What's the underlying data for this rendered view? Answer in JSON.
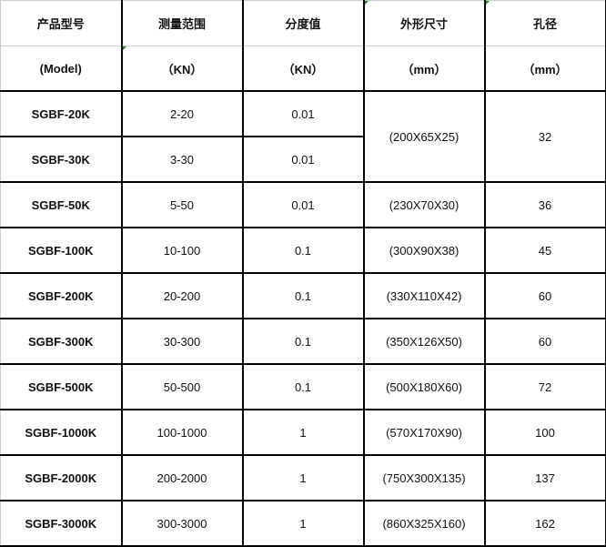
{
  "header": {
    "row1": [
      "产品型号",
      "测量范围",
      "分度值",
      "外形尺寸",
      "孔径"
    ],
    "row2": [
      "(Model)",
      "（KN）",
      "（KN）",
      "（mm）",
      "（mm）"
    ]
  },
  "rows": [
    {
      "model": "SGBF-20K",
      "range": "2-20",
      "division": "0.01",
      "dims": "(200X65X25)",
      "hole": "32"
    },
    {
      "model": "SGBF-30K",
      "range": "3-30",
      "division": "0.01"
    },
    {
      "model": "SGBF-50K",
      "range": "5-50",
      "division": "0.01",
      "dims": "(230X70X30)",
      "hole": "36"
    },
    {
      "model": "SGBF-100K",
      "range": "10-100",
      "division": "0.1",
      "dims": "(300X90X38)",
      "hole": "45"
    },
    {
      "model": "SGBF-200K",
      "range": "20-200",
      "division": "0.1",
      "dims": "(330X110X42)",
      "hole": "60"
    },
    {
      "model": "SGBF-300K",
      "range": "30-300",
      "division": "0.1",
      "dims": "(350X126X50)",
      "hole": "60"
    },
    {
      "model": "SGBF-500K",
      "range": "50-500",
      "division": "0.1",
      "dims": "(500X180X60)",
      "hole": "72"
    },
    {
      "model": "SGBF-1000K",
      "range": "100-1000",
      "division": "1",
      "dims": "(570X170X90)",
      "hole": "100"
    },
    {
      "model": "SGBF-2000K",
      "range": "200-2000",
      "division": "1",
      "dims": "(750X300X135)",
      "hole": "137"
    },
    {
      "model": "SGBF-3000K",
      "range": "300-3000",
      "division": "1",
      "dims": "(860X325X160)",
      "hole": "162"
    }
  ]
}
